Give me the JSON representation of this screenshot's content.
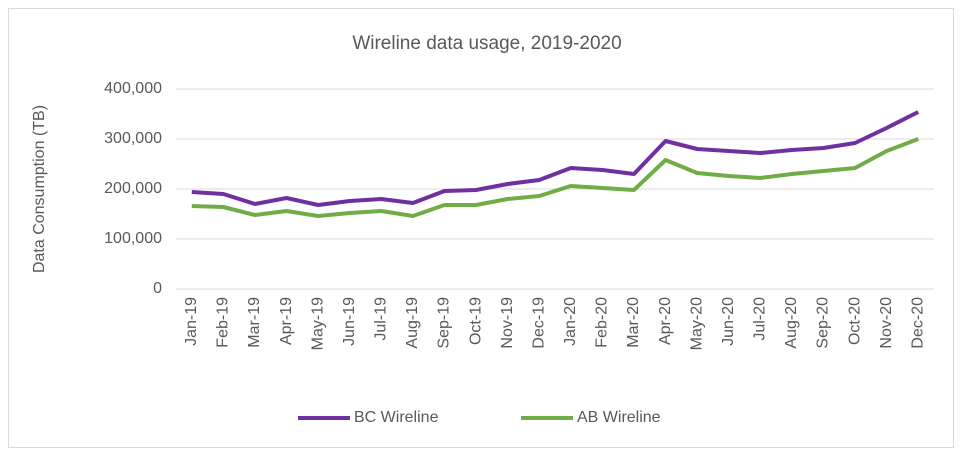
{
  "chart_data": {
    "type": "line",
    "title": "Wireline data usage, 2019-2020",
    "y_label": "Data Consumption (TB)",
    "categories": [
      "Jan-19",
      "Feb-19",
      "Mar-19",
      "Apr-19",
      "May-19",
      "Jun-19",
      "Jul-19",
      "Aug-19",
      "Sep-19",
      "Oct-19",
      "Nov-19",
      "Dec-19",
      "Jan-20",
      "Feb-20",
      "Mar-20",
      "Apr-20",
      "May-20",
      "Jun-20",
      "Jul-20",
      "Aug-20",
      "Sep-20",
      "Oct-20",
      "Nov-20",
      "Dec-20"
    ],
    "series": [
      {
        "name": "BC Wireline",
        "color": "#7030a0",
        "values": [
          194000,
          190000,
          170000,
          182000,
          168000,
          176000,
          180000,
          172000,
          196000,
          198000,
          210000,
          218000,
          242000,
          238000,
          230000,
          296000,
          280000,
          276000,
          272000,
          278000,
          282000,
          292000,
          322000,
          354000
        ]
      },
      {
        "name": "AB Wireline",
        "color": "#70ad47",
        "values": [
          166000,
          164000,
          148000,
          156000,
          146000,
          152000,
          156000,
          146000,
          168000,
          168000,
          180000,
          186000,
          206000,
          202000,
          198000,
          258000,
          232000,
          226000,
          222000,
          230000,
          236000,
          242000,
          276000,
          300000
        ]
      }
    ],
    "ylim": [
      0,
      400000
    ],
    "yticks": [
      0,
      {
        "value": 100000,
        "label": "100,000"
      },
      {
        "value": 200000,
        "label": "200,000"
      },
      {
        "value": 300000,
        "label": "300,000"
      },
      {
        "value": 400000,
        "label": "400,000"
      }
    ],
    "grid": true,
    "legend": "bottom"
  }
}
